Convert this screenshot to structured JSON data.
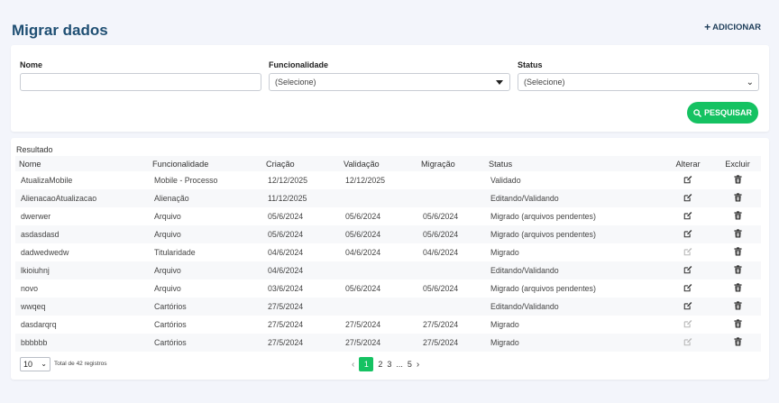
{
  "page": {
    "title": "Migrar dados",
    "add_label": "ADICIONAR"
  },
  "filters": {
    "nome_label": "Nome",
    "nome_value": "",
    "func_label": "Funcionalidade",
    "func_value": "(Selecione)",
    "status_label": "Status",
    "status_value": "(Selecione)",
    "search_label": "PESQUISAR"
  },
  "results": {
    "label": "Resultado",
    "columns": [
      "Nome",
      "Funcionalidade",
      "Criação",
      "Validação",
      "Migração",
      "Status",
      "Alterar",
      "Excluir"
    ],
    "rows": [
      {
        "nome": "AtualizaMobile",
        "func": "Mobile - Processo",
        "criacao": "12/12/2025",
        "validacao": "12/12/2025",
        "migracao": "",
        "status": "Validado",
        "edit_enabled": true
      },
      {
        "nome": "AlienacaoAtualizacao",
        "func": "Alienação",
        "criacao": "11/12/2025",
        "validacao": "",
        "migracao": "",
        "status": "Editando/Validando",
        "edit_enabled": true
      },
      {
        "nome": "dwerwer",
        "func": "Arquivo",
        "criacao": "05/6/2024",
        "validacao": "05/6/2024",
        "migracao": "05/6/2024",
        "status": "Migrado (arquivos pendentes)",
        "edit_enabled": true
      },
      {
        "nome": "asdasdasd",
        "func": "Arquivo",
        "criacao": "05/6/2024",
        "validacao": "05/6/2024",
        "migracao": "05/6/2024",
        "status": "Migrado (arquivos pendentes)",
        "edit_enabled": true
      },
      {
        "nome": "dadwedwedw",
        "func": "Titularidade",
        "criacao": "04/6/2024",
        "validacao": "04/6/2024",
        "migracao": "04/6/2024",
        "status": "Migrado",
        "edit_enabled": false
      },
      {
        "nome": "lkioiuhnj",
        "func": "Arquivo",
        "criacao": "04/6/2024",
        "validacao": "",
        "migracao": "",
        "status": "Editando/Validando",
        "edit_enabled": true
      },
      {
        "nome": "novo",
        "func": "Arquivo",
        "criacao": "03/6/2024",
        "validacao": "05/6/2024",
        "migracao": "05/6/2024",
        "status": "Migrado (arquivos pendentes)",
        "edit_enabled": true
      },
      {
        "nome": "wwqeq",
        "func": "Cartórios",
        "criacao": "27/5/2024",
        "validacao": "",
        "migracao": "",
        "status": "Editando/Validando",
        "edit_enabled": true
      },
      {
        "nome": "dasdarqrq",
        "func": "Cartórios",
        "criacao": "27/5/2024",
        "validacao": "27/5/2024",
        "migracao": "27/5/2024",
        "status": "Migrado",
        "edit_enabled": false
      },
      {
        "nome": "bbbbbb",
        "func": "Cartórios",
        "criacao": "27/5/2024",
        "validacao": "27/5/2024",
        "migracao": "27/5/2024",
        "status": "Migrado",
        "edit_enabled": false
      }
    ]
  },
  "pagination": {
    "page_size": "10",
    "total_text": "Total de 42 registros",
    "pages": [
      "1",
      "2",
      "3",
      "...",
      "5"
    ],
    "active_page": "1",
    "prev_icon": "chevron-left-icon",
    "next_icon": "chevron-right-icon"
  },
  "colors": {
    "accent": "#15c262",
    "title": "#1f4f73"
  }
}
